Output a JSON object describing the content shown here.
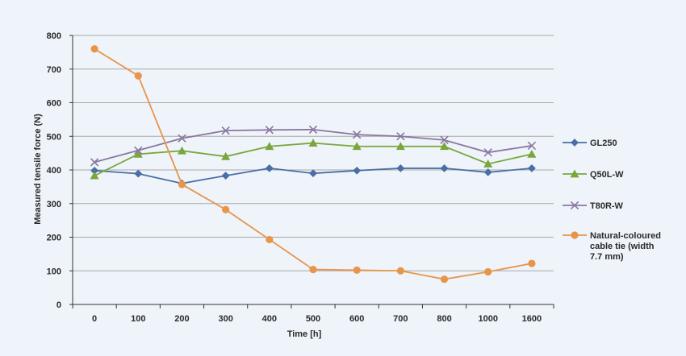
{
  "chart_data": {
    "type": "line",
    "title": "",
    "xlabel": "Time [h]",
    "ylabel": "Measured tensile force (N)",
    "categories": [
      "0",
      "100",
      "200",
      "300",
      "400",
      "500",
      "600",
      "700",
      "800",
      "1000",
      "1600"
    ],
    "ylim": [
      0,
      800
    ],
    "yticks": [
      0,
      100,
      200,
      300,
      400,
      500,
      600,
      700,
      800
    ],
    "grid": "horizontal",
    "legend_position": "right",
    "series": [
      {
        "name": "GL250",
        "color": "#4a6ea8",
        "marker": "diamond",
        "values": [
          398,
          389,
          360,
          383,
          405,
          390,
          398,
          405,
          405,
          393,
          405
        ]
      },
      {
        "name": "Q50L-W",
        "color": "#7aa63c",
        "marker": "triangle",
        "values": [
          383,
          447,
          457,
          440,
          470,
          480,
          470,
          470,
          470,
          418,
          447
        ]
      },
      {
        "name": "T80R-W",
        "color": "#8b77a0",
        "marker": "x",
        "values": [
          423,
          458,
          494,
          517,
          519,
          520,
          505,
          500,
          489,
          452,
          472
        ]
      },
      {
        "name": "Natural-coloured cable tie (width 7.7 mm)",
        "legend_lines": [
          "Natural-coloured",
          "cable tie (width",
          "7.7 mm)"
        ],
        "color": "#e8954a",
        "marker": "circle",
        "values": [
          760,
          680,
          357,
          282,
          193,
          104,
          102,
          100,
          75,
          97,
          122
        ]
      }
    ]
  }
}
